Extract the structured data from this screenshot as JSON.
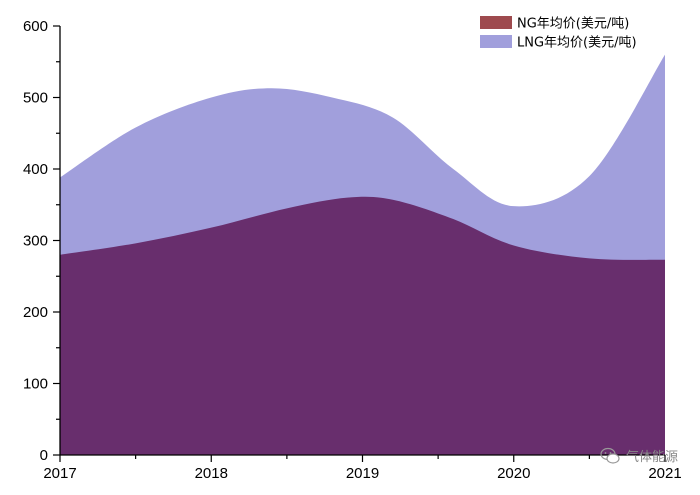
{
  "chart_data": {
    "type": "area",
    "x": [
      2017,
      2018,
      2019,
      2020,
      2021
    ],
    "xlim": [
      2017,
      2021
    ],
    "ylim": [
      0,
      600
    ],
    "x_ticks": [
      "2017",
      "2018",
      "2019",
      "2020",
      "2021"
    ],
    "y_ticks": [
      "0",
      "100",
      "200",
      "300",
      "400",
      "500",
      "600"
    ],
    "series": [
      {
        "name": "NG年均价(美元/吨)",
        "color": "#682e6d",
        "swatch_color": "#9e4a4e",
        "points": [
          [
            2017,
            280
          ],
          [
            2017.5,
            296
          ],
          [
            2018,
            318
          ],
          [
            2018.5,
            345
          ],
          [
            2018.9,
            360
          ],
          [
            2019.2,
            357
          ],
          [
            2019.6,
            330
          ],
          [
            2020,
            293
          ],
          [
            2020.5,
            275
          ],
          [
            2021,
            273
          ]
        ]
      },
      {
        "name": "LNG年均价(美元/吨)",
        "color": "#a19fdc",
        "swatch_color": "#a19fdc",
        "points": [
          [
            2017,
            388
          ],
          [
            2017.5,
            458
          ],
          [
            2018,
            500
          ],
          [
            2018.4,
            513
          ],
          [
            2018.8,
            500
          ],
          [
            2019.2,
            472
          ],
          [
            2019.6,
            400
          ],
          [
            2020,
            348
          ],
          [
            2020.5,
            390
          ],
          [
            2021,
            560
          ]
        ]
      }
    ],
    "legend_position": "top-right",
    "grid": false
  },
  "watermark": {
    "text": "气体能源",
    "icon": "wechat-icon"
  }
}
